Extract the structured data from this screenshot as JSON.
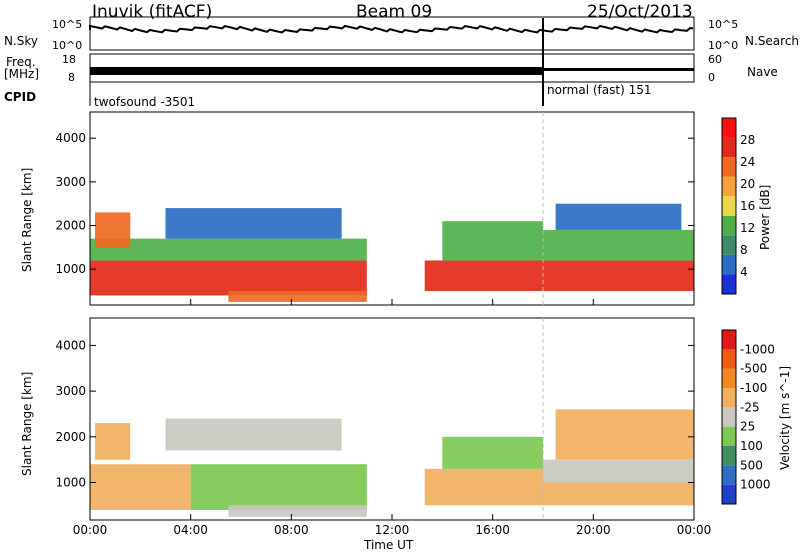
{
  "header": {
    "station": "Inuvik (fitACF)",
    "beam": "Beam 09",
    "date": "25/Oct/2013"
  },
  "strip_labels": {
    "nsky": "N.Sky",
    "nsearch": "N.Search",
    "freq_line1": "Freq.",
    "freq_line2": "[MHz]",
    "nave": "Nave",
    "cpid": "CPID",
    "noise_left_ticks": [
      "10^5",
      "10^0"
    ],
    "noise_right_ticks": [
      "10^5",
      "10^0"
    ],
    "freq_left_ticks": [
      "18",
      "8"
    ],
    "freq_right_ticks": [
      "60",
      "0"
    ]
  },
  "cpid_programs": [
    {
      "label": "twofsound -3501",
      "start_hour": 0,
      "end_hour": 18.0
    },
    {
      "label": "normal (fast) 151",
      "start_hour": 18.0,
      "end_hour": 24
    }
  ],
  "colors": {
    "power_scale": [
      "#1f2fd6",
      "#2a6fc4",
      "#3c8c6a",
      "#4fb04a",
      "#e8d84a",
      "#f4a23a",
      "#f06a22",
      "#e32a1a",
      "#ff1010"
    ],
    "velocity_scale": [
      "#2040c8",
      "#2e6ec4",
      "#3e9060",
      "#7cc850",
      "#c8c8c0",
      "#f0b060",
      "#f08a20",
      "#ee5a14",
      "#e01818"
    ]
  },
  "chart_data": [
    {
      "type": "heatmap",
      "title": "Power",
      "xlabel": "Time UT",
      "ylabel": "Slant Range [km]",
      "xlim": [
        0,
        24
      ],
      "ylim": [
        180,
        4600
      ],
      "x_ticks": [
        "00:00",
        "04:00",
        "08:00",
        "12:00",
        "16:00",
        "20:00",
        "00:00"
      ],
      "y_ticks": [
        "1000",
        "2000",
        "3000",
        "4000"
      ],
      "colorbar_label": "Power [dB]",
      "colorbar_ticks": [
        "4",
        "8",
        "12",
        "16",
        "20",
        "24",
        "28"
      ],
      "colorbar_range": [
        0,
        32
      ],
      "regions": [
        {
          "t0": 0.0,
          "t1": 11.0,
          "r0": 400,
          "r1": 1200,
          "value": 28
        },
        {
          "t0": 0.0,
          "t1": 11.0,
          "r0": 1200,
          "r1": 1700,
          "value": 14
        },
        {
          "t0": 3.0,
          "t1": 10.0,
          "r0": 1700,
          "r1": 2400,
          "value": 5
        },
        {
          "t0": 0.2,
          "t1": 1.6,
          "r0": 1500,
          "r1": 2300,
          "value": 22
        },
        {
          "t0": 5.5,
          "t1": 11.0,
          "r0": 250,
          "r1": 500,
          "value": 22
        },
        {
          "t0": 13.3,
          "t1": 18.0,
          "r0": 500,
          "r1": 1200,
          "value": 27
        },
        {
          "t0": 14.0,
          "t1": 18.0,
          "r0": 1200,
          "r1": 2100,
          "value": 11
        },
        {
          "t0": 18.0,
          "t1": 24.0,
          "r0": 500,
          "r1": 1200,
          "value": 26
        },
        {
          "t0": 18.0,
          "t1": 24.0,
          "r0": 1200,
          "r1": 1900,
          "value": 13
        },
        {
          "t0": 18.5,
          "t1": 23.5,
          "r0": 1900,
          "r1": 2500,
          "value": 6
        }
      ]
    },
    {
      "type": "heatmap",
      "title": "Velocity",
      "xlabel": "Time UT",
      "ylabel": "Slant Range [km]",
      "xlim": [
        0,
        24
      ],
      "ylim": [
        180,
        4600
      ],
      "x_ticks": [
        "00:00",
        "04:00",
        "08:00",
        "12:00",
        "16:00",
        "20:00",
        "00:00"
      ],
      "y_ticks": [
        "1000",
        "2000",
        "3000",
        "4000"
      ],
      "colorbar_label": "Velocity [m s^-1]",
      "colorbar_ticks": [
        "1000",
        "500",
        "100",
        "25",
        "-25",
        "-100",
        "-500",
        "-1000"
      ],
      "colorbar_range": [
        1000,
        -1000
      ],
      "regions": [
        {
          "t0": 0.0,
          "t1": 4.0,
          "r0": 400,
          "r1": 1400,
          "value": -150
        },
        {
          "t0": 0.2,
          "t1": 1.6,
          "r0": 1500,
          "r1": 2300,
          "value": -300
        },
        {
          "t0": 3.0,
          "t1": 10.0,
          "r0": 1700,
          "r1": 2400,
          "value": 0
        },
        {
          "t0": 4.0,
          "t1": 11.0,
          "r0": 400,
          "r1": 1400,
          "value": 200
        },
        {
          "t0": 5.5,
          "t1": 11.0,
          "r0": 250,
          "r1": 500,
          "value": 60
        },
        {
          "t0": 13.3,
          "t1": 18.0,
          "r0": 500,
          "r1": 1300,
          "value": -150
        },
        {
          "t0": 14.0,
          "t1": 18.0,
          "r0": 1300,
          "r1": 2000,
          "value": 200
        },
        {
          "t0": 18.0,
          "t1": 24.0,
          "r0": 500,
          "r1": 1000,
          "value": -200
        },
        {
          "t0": 18.0,
          "t1": 24.0,
          "r0": 1000,
          "r1": 1500,
          "value": 0
        },
        {
          "t0": 18.5,
          "t1": 24.0,
          "r0": 1500,
          "r1": 2600,
          "value": -300
        }
      ]
    }
  ]
}
